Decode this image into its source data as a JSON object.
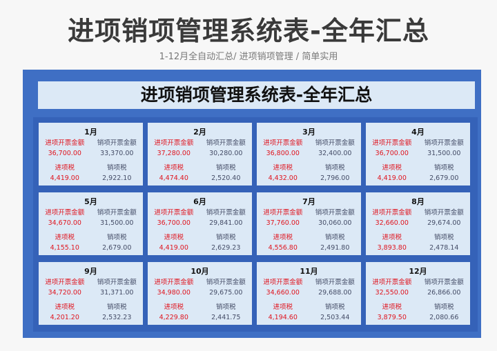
{
  "header": {
    "title": "进项销项管理系统表-全年汇总",
    "subtitle": "1-12月全自动汇总/ 进项销项管理 / 简单实用"
  },
  "sheet": {
    "title": "进项销项管理系统表-全年汇总",
    "labels": {
      "in_amount": "进项开票金额",
      "out_amount": "销项开票金额",
      "in_tax": "进项税",
      "out_tax": "销项税"
    },
    "months": [
      {
        "month": "1月",
        "in_amount": "36,700.00",
        "out_amount": "33,370.00",
        "in_tax": "4,419.00",
        "out_tax": "2,922.10"
      },
      {
        "month": "2月",
        "in_amount": "37,280.00",
        "out_amount": "30,280.00",
        "in_tax": "4,474.40",
        "out_tax": "2,520.40"
      },
      {
        "month": "3月",
        "in_amount": "36,800.00",
        "out_amount": "32,400.00",
        "in_tax": "4,432.00",
        "out_tax": "2,796.00"
      },
      {
        "month": "4月",
        "in_amount": "36,700.00",
        "out_amount": "31,500.00",
        "in_tax": "4,419.00",
        "out_tax": "2,679.00"
      },
      {
        "month": "5月",
        "in_amount": "34,670.00",
        "out_amount": "31,500.00",
        "in_tax": "4,155.10",
        "out_tax": "2,679.00"
      },
      {
        "month": "6月",
        "in_amount": "36,700.00",
        "out_amount": "29,841.00",
        "in_tax": "4,419.00",
        "out_tax": "2,629.23"
      },
      {
        "month": "7月",
        "in_amount": "37,760.00",
        "out_amount": "30,060.00",
        "in_tax": "4,556.80",
        "out_tax": "2,491.80"
      },
      {
        "month": "8月",
        "in_amount": "32,660.00",
        "out_amount": "29,674.00",
        "in_tax": "3,893.80",
        "out_tax": "2,478.14"
      },
      {
        "month": "9月",
        "in_amount": "34,720.00",
        "out_amount": "31,371.00",
        "in_tax": "4,201.20",
        "out_tax": "2,532.23"
      },
      {
        "month": "10月",
        "in_amount": "34,980.00",
        "out_amount": "29,675.00",
        "in_tax": "4,229.80",
        "out_tax": "2,441.75"
      },
      {
        "month": "11月",
        "in_amount": "34,660.00",
        "out_amount": "29,688.00",
        "in_tax": "4,194.60",
        "out_tax": "2,503.44"
      },
      {
        "month": "12月",
        "in_amount": "32,550.00",
        "out_amount": "26,866.00",
        "in_tax": "3,879.50",
        "out_tax": "2,080.66"
      }
    ]
  },
  "colors": {
    "frame": "#3f6fc4",
    "card": "#dce9f6",
    "input": "#e0141e",
    "output": "#444c66"
  }
}
